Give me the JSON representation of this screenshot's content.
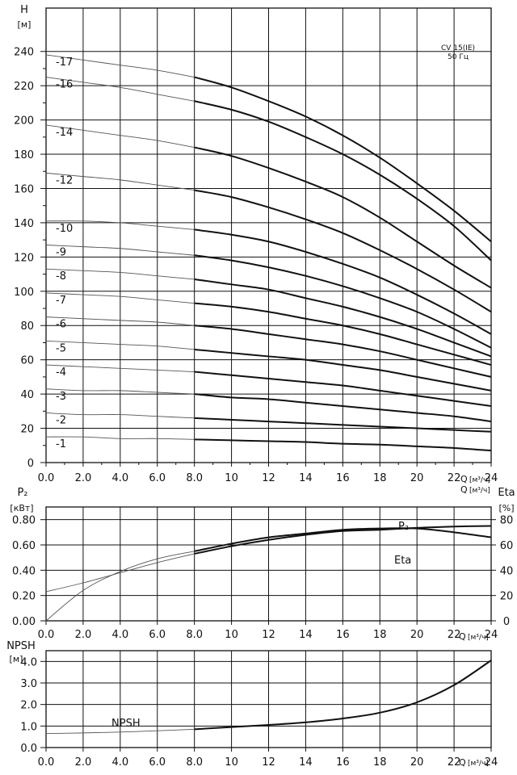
{
  "chart_data": [
    {
      "type": "line",
      "panel": "head",
      "ylabel": "H",
      "yunit": "[м]",
      "xlabel": "Q",
      "xunit": "[м³/ч]",
      "annotation": [
        "CV 15(IE)",
        "50 Гц"
      ],
      "xlim": [
        0,
        24
      ],
      "ylim": [
        0,
        250
      ],
      "xticks": [
        "0.0",
        "2.0",
        "4.0",
        "6.0",
        "8.0",
        "10",
        "12",
        "14",
        "16",
        "18",
        "20",
        "22",
        "24"
      ],
      "yticks": [
        "0",
        "20",
        "40",
        "60",
        "80",
        "100",
        "120",
        "140",
        "160",
        "180",
        "200",
        "220",
        "240"
      ],
      "grid": true,
      "x": [
        0,
        2,
        4,
        6,
        8,
        10,
        12,
        14,
        16,
        18,
        20,
        22,
        24
      ],
      "series": [
        {
          "name": "-17",
          "values": [
            238,
            235,
            232,
            229,
            225,
            219,
            211,
            202,
            191,
            178,
            163,
            147,
            129
          ]
        },
        {
          "name": "-16",
          "values": [
            225,
            222,
            219,
            215,
            211,
            206,
            199,
            190,
            180,
            168,
            154,
            138,
            118
          ]
        },
        {
          "name": "-14",
          "values": [
            197,
            194,
            191,
            188,
            184,
            179,
            172,
            164,
            155,
            143,
            129,
            115,
            102
          ]
        },
        {
          "name": "-12",
          "values": [
            169,
            167,
            165,
            162,
            159,
            155,
            149,
            142,
            134,
            124,
            113,
            101,
            88
          ]
        },
        {
          "name": "-10",
          "values": [
            141,
            141,
            140,
            138,
            136,
            133,
            129,
            123,
            116,
            108,
            98,
            87,
            75
          ]
        },
        {
          "name": "-9",
          "values": [
            127,
            126,
            125,
            123,
            121,
            118,
            114,
            109,
            103,
            96,
            88,
            78,
            67
          ]
        },
        {
          "name": "-8",
          "values": [
            113,
            112,
            111,
            109,
            107,
            104,
            101,
            96,
            91,
            85,
            78,
            70,
            62
          ]
        },
        {
          "name": "-7",
          "values": [
            99,
            98,
            97,
            95,
            93,
            91,
            88,
            84,
            80,
            75,
            69,
            63,
            57
          ]
        },
        {
          "name": "-6",
          "values": [
            85,
            84,
            83,
            82,
            80,
            78,
            75,
            72,
            69,
            65,
            60,
            55,
            50
          ]
        },
        {
          "name": "-5",
          "values": [
            71,
            70,
            69,
            68,
            66,
            64,
            62,
            60,
            57,
            54,
            50,
            46,
            42
          ]
        },
        {
          "name": "-4",
          "values": [
            57,
            56,
            55,
            54,
            53,
            51,
            49,
            47,
            45,
            42,
            39,
            36,
            33
          ]
        },
        {
          "name": "-3",
          "values": [
            43,
            42,
            42,
            41,
            40,
            38,
            37,
            35,
            33,
            31,
            29,
            27,
            24
          ]
        },
        {
          "name": "-2",
          "values": [
            29,
            28,
            28,
            27,
            26,
            25,
            24,
            23,
            22,
            21,
            20,
            19,
            18
          ]
        },
        {
          "name": "-1",
          "values": [
            15,
            15,
            14,
            14,
            13.5,
            13,
            12.5,
            12,
            11,
            10.5,
            9.5,
            8.5,
            7
          ]
        }
      ]
    },
    {
      "type": "line",
      "panel": "power-efficiency",
      "ylabel": "P₂",
      "yunit": "[кВт]",
      "y2label": "Eta",
      "y2unit": "[%]",
      "xlabel": "Q",
      "xunit": "[м³/ч]",
      "xlim": [
        0,
        24
      ],
      "ylim": [
        0,
        0.9
      ],
      "y2lim": [
        0,
        90
      ],
      "xticks": [
        "0.0",
        "2.0",
        "4.0",
        "6.0",
        "8.0",
        "10",
        "12",
        "14",
        "16",
        "18",
        "20",
        "22",
        "24"
      ],
      "yticks": [
        "0.00",
        "0.20",
        "0.40",
        "0.60",
        "0.80"
      ],
      "y2ticks": [
        "0",
        "20",
        "40",
        "60",
        "80"
      ],
      "grid": true,
      "x": [
        0,
        2,
        4,
        6,
        8,
        10,
        12,
        14,
        16,
        18,
        20,
        22,
        24
      ],
      "series": [
        {
          "name": "P₂",
          "axis": "left",
          "values": [
            0.23,
            0.3,
            0.38,
            0.46,
            0.53,
            0.59,
            0.64,
            0.68,
            0.71,
            0.72,
            0.735,
            0.745,
            0.75
          ]
        },
        {
          "name": "Eta",
          "axis": "right",
          "values": [
            0,
            24,
            39,
            49,
            55,
            61,
            66,
            69,
            72,
            73,
            73,
            70,
            66
          ]
        }
      ]
    },
    {
      "type": "line",
      "panel": "npsh",
      "ylabel": "NPSH",
      "yunit": "[м]",
      "xlabel": "Q",
      "xunit": "[м³/ч]",
      "xlim": [
        0,
        24
      ],
      "ylim": [
        0,
        4.5
      ],
      "xticks": [
        "0.0",
        "2.0",
        "4.0",
        "6.0",
        "8.0",
        "10",
        "12",
        "14",
        "16",
        "18",
        "20",
        "22",
        "24"
      ],
      "yticks": [
        "0.0",
        "1.0",
        "2.0",
        "3.0",
        "4.0"
      ],
      "grid": true,
      "x": [
        0,
        2,
        4,
        6,
        8,
        10,
        12,
        14,
        16,
        18,
        20,
        22,
        24
      ],
      "series": [
        {
          "name": "NPSH",
          "values": [
            0.65,
            0.68,
            0.72,
            0.78,
            0.85,
            0.95,
            1.05,
            1.17,
            1.35,
            1.62,
            2.1,
            2.9,
            4.05
          ]
        }
      ]
    }
  ]
}
